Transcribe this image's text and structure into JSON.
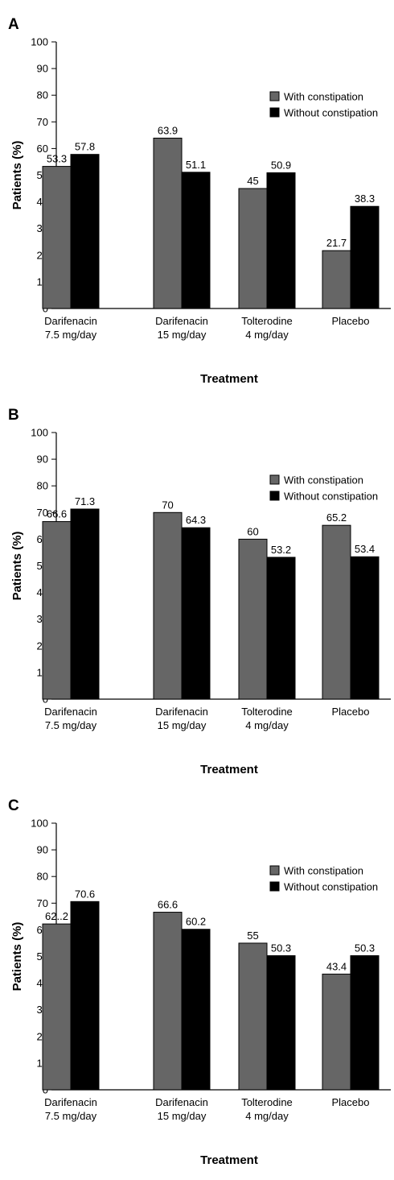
{
  "colors": {
    "with_constipation": "#666666",
    "without_constipation": "#000000",
    "axis": "#000000"
  },
  "chart_data": [
    {
      "panel": "A",
      "type": "bar",
      "categories": [
        [
          "Darifenacin",
          "7.5 mg/day"
        ],
        [
          "Darifenacin",
          "15 mg/day"
        ],
        [
          "Tolterodine",
          "4 mg/day"
        ],
        [
          "Placebo"
        ]
      ],
      "series": [
        {
          "name": "With constipation",
          "values": [
            53.3,
            63.9,
            45,
            21.7
          ],
          "labels": [
            "53.3",
            "63.9",
            "45",
            "21.7"
          ]
        },
        {
          "name": "Without constipation",
          "values": [
            57.8,
            51.1,
            50.9,
            38.3
          ],
          "labels": [
            "57.8",
            "51.1",
            "50.9",
            "38.3"
          ]
        }
      ],
      "xlabel": "Treatment",
      "ylabel": "Patients (%)",
      "ylim": [
        0,
        100
      ],
      "yticks": [
        0,
        10,
        20,
        30,
        40,
        50,
        60,
        70,
        80,
        90,
        100
      ],
      "legend": "top-right",
      "grid": false
    },
    {
      "panel": "B",
      "type": "bar",
      "categories": [
        [
          "Darifenacin",
          "7.5 mg/day"
        ],
        [
          "Darifenacin",
          "15 mg/day"
        ],
        [
          "Tolterodine",
          "4 mg/day"
        ],
        [
          "Placebo"
        ]
      ],
      "series": [
        {
          "name": "With constipation",
          "values": [
            66.6,
            70,
            60,
            65.2
          ],
          "labels": [
            "66.6",
            "70",
            "60",
            "65.2"
          ]
        },
        {
          "name": "Without constipation",
          "values": [
            71.3,
            64.3,
            53.2,
            53.4
          ],
          "labels": [
            "71.3",
            "64.3",
            "53.2",
            "53.4"
          ]
        }
      ],
      "xlabel": "Treatment",
      "ylabel": "Patients (%)",
      "ylim": [
        0,
        100
      ],
      "yticks": [
        0,
        10,
        20,
        30,
        40,
        50,
        60,
        70,
        80,
        90,
        100
      ],
      "legend": "top-right",
      "grid": false
    },
    {
      "panel": "C",
      "type": "bar",
      "categories": [
        [
          "Darifenacin",
          "7.5 mg/day"
        ],
        [
          "Darifenacin",
          "15 mg/day"
        ],
        [
          "Tolterodine",
          "4 mg/day"
        ],
        [
          "Placebo"
        ]
      ],
      "series": [
        {
          "name": "With constipation",
          "values": [
            62.2,
            66.6,
            55,
            43.4
          ],
          "labels": [
            "62..2",
            "66.6",
            "55",
            "43.4"
          ]
        },
        {
          "name": "Without constipation",
          "values": [
            70.6,
            60.2,
            50.3,
            50.3
          ],
          "labels": [
            "70.6",
            "60.2",
            "50.3",
            "50.3"
          ]
        }
      ],
      "xlabel": "Treatment",
      "ylabel": "Patients (%)",
      "ylim": [
        0,
        100
      ],
      "yticks": [
        0,
        10,
        20,
        30,
        40,
        50,
        60,
        70,
        80,
        90,
        100
      ],
      "legend": "top-right",
      "grid": false
    }
  ]
}
